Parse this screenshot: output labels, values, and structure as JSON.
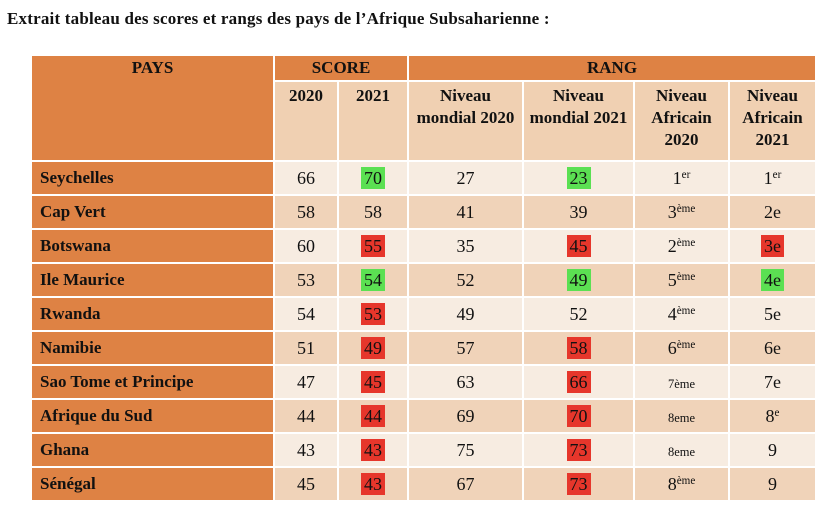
{
  "title": "Extrait tableau des scores et rangs des pays de l’Afrique Subsaharienne :",
  "colors": {
    "orange": "#de8244",
    "row_light": "#f7ece1",
    "row_dark": "#f0d3b9",
    "subheader": "#f0d0b2",
    "highlight_green": "#5be052",
    "highlight_red": "#e6362b"
  },
  "table": {
    "header": {
      "pays": "PAYS",
      "score": "SCORE",
      "rang": "RANG",
      "sub": [
        "2020",
        "2021",
        "Niveau mondial 2020",
        "Niveau mondial 2021",
        "Niveau Africain 2020",
        "Niveau Africain 2021"
      ]
    },
    "rows": [
      {
        "pays": "Seychelles",
        "score_2020": {
          "t": "66"
        },
        "score_2021": {
          "t": "70",
          "hl": "green"
        },
        "nm_2020": {
          "t": "27"
        },
        "nm_2021": {
          "t": "23",
          "hl": "green"
        },
        "na_2020": {
          "t": "1",
          "sup": "er"
        },
        "na_2021": {
          "t": "1",
          "sup": "er"
        }
      },
      {
        "pays": "Cap Vert",
        "score_2020": {
          "t": "58"
        },
        "score_2021": {
          "t": "58"
        },
        "nm_2020": {
          "t": "41"
        },
        "nm_2021": {
          "t": "39"
        },
        "na_2020": {
          "t": "3",
          "sup": "ème"
        },
        "na_2021": {
          "t": "2e"
        }
      },
      {
        "pays": "Botswana",
        "score_2020": {
          "t": "60"
        },
        "score_2021": {
          "t": "55",
          "hl": "red"
        },
        "nm_2020": {
          "t": "35"
        },
        "nm_2021": {
          "t": "45",
          "hl": "red"
        },
        "na_2020": {
          "t": "2",
          "sup": "ème"
        },
        "na_2021": {
          "t": "3e",
          "hl": "red"
        }
      },
      {
        "pays": "Ile Maurice",
        "score_2020": {
          "t": "53"
        },
        "score_2021": {
          "t": "54",
          "hl": "green"
        },
        "nm_2020": {
          "t": "52"
        },
        "nm_2021": {
          "t": "49",
          "hl": "green"
        },
        "na_2020": {
          "t": "5",
          "sup": "ème"
        },
        "na_2021": {
          "t": "4e",
          "hl": "green"
        }
      },
      {
        "pays": "Rwanda",
        "score_2020": {
          "t": "54"
        },
        "score_2021": {
          "t": "53",
          "hl": "red"
        },
        "nm_2020": {
          "t": "49"
        },
        "nm_2021": {
          "t": "52"
        },
        "na_2020": {
          "t": "4",
          "sup": "ème"
        },
        "na_2021": {
          "t": "5e"
        }
      },
      {
        "pays": "Namibie",
        "score_2020": {
          "t": "51"
        },
        "score_2021": {
          "t": "49",
          "hl": "red"
        },
        "nm_2020": {
          "t": "57"
        },
        "nm_2021": {
          "t": "58",
          "hl": "red"
        },
        "na_2020": {
          "t": "6",
          "sup": "ème"
        },
        "na_2021": {
          "t": "6e"
        }
      },
      {
        "pays": "Sao Tome et Principe",
        "score_2020": {
          "t": "47"
        },
        "score_2021": {
          "t": "45",
          "hl": "red"
        },
        "nm_2020": {
          "t": "63"
        },
        "nm_2021": {
          "t": "66",
          "hl": "red"
        },
        "na_2020": {
          "t": "7ème",
          "small": true
        },
        "na_2021": {
          "t": "7e"
        }
      },
      {
        "pays": "Afrique du Sud",
        "score_2020": {
          "t": "44"
        },
        "score_2021": {
          "t": "44",
          "hl": "red"
        },
        "nm_2020": {
          "t": "69"
        },
        "nm_2021": {
          "t": "70",
          "hl": "red"
        },
        "na_2020": {
          "t": "8eme",
          "small": true
        },
        "na_2021": {
          "t": "8",
          "sup": "e"
        }
      },
      {
        "pays": "Ghana",
        "score_2020": {
          "t": "43"
        },
        "score_2021": {
          "t": "43",
          "hl": "red"
        },
        "nm_2020": {
          "t": "75"
        },
        "nm_2021": {
          "t": "73",
          "hl": "red"
        },
        "na_2020": {
          "t": "8eme",
          "small": true
        },
        "na_2021": {
          "t": "9"
        }
      },
      {
        "pays": "Sénégal",
        "score_2020": {
          "t": "45"
        },
        "score_2021": {
          "t": "43",
          "hl": "red"
        },
        "nm_2020": {
          "t": "67"
        },
        "nm_2021": {
          "t": "73",
          "hl": "red"
        },
        "na_2020": {
          "t": "8",
          "sup": "ème"
        },
        "na_2021": {
          "t": "9"
        }
      }
    ]
  }
}
